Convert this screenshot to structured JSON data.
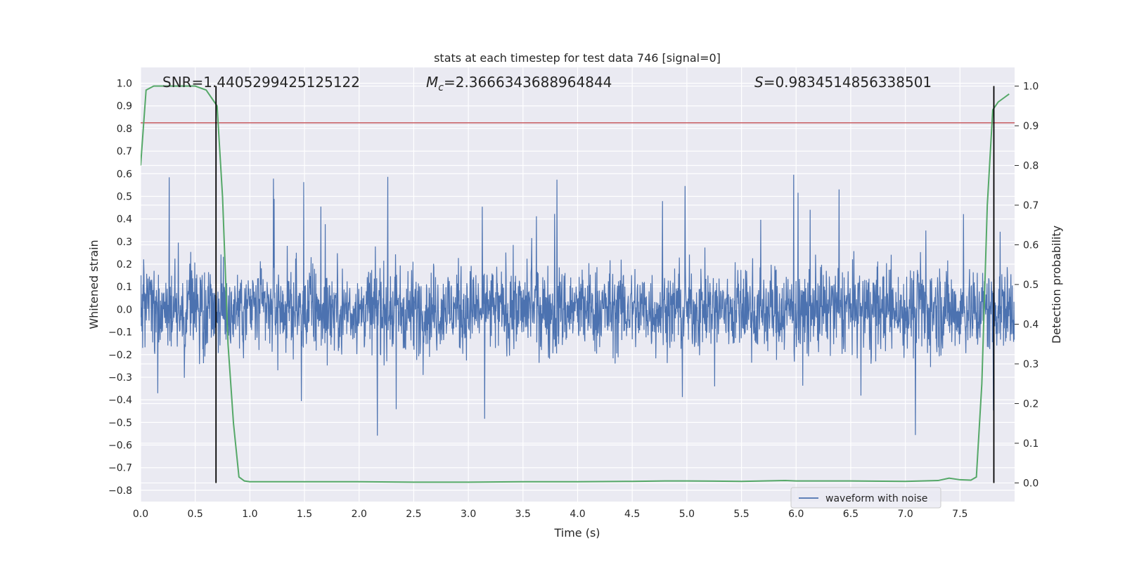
{
  "chart_data": {
    "type": "line",
    "title": "stats at each timestep for test data 746 [signal=0]",
    "xlabel": "Time (s)",
    "ylabel": "Whitened strain",
    "y2label": "Detection probability",
    "xlim": [
      0.0,
      8.0
    ],
    "ylim": [
      -0.85,
      1.07
    ],
    "y2lim": [
      -0.047,
      1.047
    ],
    "x_ticks": [
      "0.0",
      "0.5",
      "1.0",
      "1.5",
      "2.0",
      "2.5",
      "3.0",
      "3.5",
      "4.0",
      "4.5",
      "5.0",
      "5.5",
      "6.0",
      "6.5",
      "7.0",
      "7.5"
    ],
    "y_ticks": [
      "−0.8",
      "−0.7",
      "−0.6",
      "−0.5",
      "−0.4",
      "−0.3",
      "−0.2",
      "−0.1",
      "0.0",
      "0.1",
      "0.2",
      "0.3",
      "0.4",
      "0.5",
      "0.6",
      "0.7",
      "0.8",
      "0.9",
      "1.0"
    ],
    "y2_ticks": [
      "0.0",
      "0.1",
      "0.2",
      "0.3",
      "0.4",
      "0.5",
      "0.6",
      "0.7",
      "0.8",
      "0.9",
      "1.0"
    ],
    "grid": true,
    "legend_position": "bottom-right",
    "annotations": {
      "snr": "SNR=1.4405299425125122",
      "mc_symbol": "M",
      "mc_sub": "c",
      "mc_value": "=2.3666343688964844",
      "s_symbol": "S",
      "s_value": "=0.9834514856338501"
    },
    "series": [
      {
        "name": "waveform with noise",
        "axis": "left",
        "color": "#4c72b0",
        "approx_envelope": 0.3,
        "approx_peak_max": 0.6,
        "approx_peak_min": -0.56
      },
      {
        "axis": "right",
        "color": "#55a868",
        "x": [
          0.0,
          0.05,
          0.12,
          0.2,
          0.3,
          0.4,
          0.5,
          0.6,
          0.65,
          0.7,
          0.75,
          0.8,
          0.85,
          0.9,
          0.95,
          1.0,
          1.5,
          2.0,
          2.5,
          3.0,
          3.5,
          4.0,
          4.5,
          4.8,
          5.0,
          5.5,
          5.9,
          6.0,
          6.5,
          7.0,
          7.3,
          7.4,
          7.5,
          7.6,
          7.65,
          7.7,
          7.75,
          7.8,
          7.85,
          7.9,
          7.95
        ],
        "values": [
          0.8,
          0.99,
          1.0,
          1.0,
          1.0,
          1.0,
          1.0,
          0.99,
          0.97,
          0.95,
          0.72,
          0.35,
          0.15,
          0.015,
          0.005,
          0.003,
          0.003,
          0.003,
          0.002,
          0.002,
          0.003,
          0.003,
          0.004,
          0.005,
          0.005,
          0.004,
          0.006,
          0.005,
          0.005,
          0.004,
          0.006,
          0.012,
          0.008,
          0.007,
          0.015,
          0.25,
          0.7,
          0.94,
          0.96,
          0.97,
          0.98
        ]
      }
    ],
    "hlines": [
      {
        "axis": "left",
        "y": 0.825,
        "color": "#c44e52"
      }
    ],
    "vlines": [
      {
        "x": 0.69,
        "color": "#000000"
      },
      {
        "x": 7.81,
        "color": "#000000"
      }
    ]
  }
}
